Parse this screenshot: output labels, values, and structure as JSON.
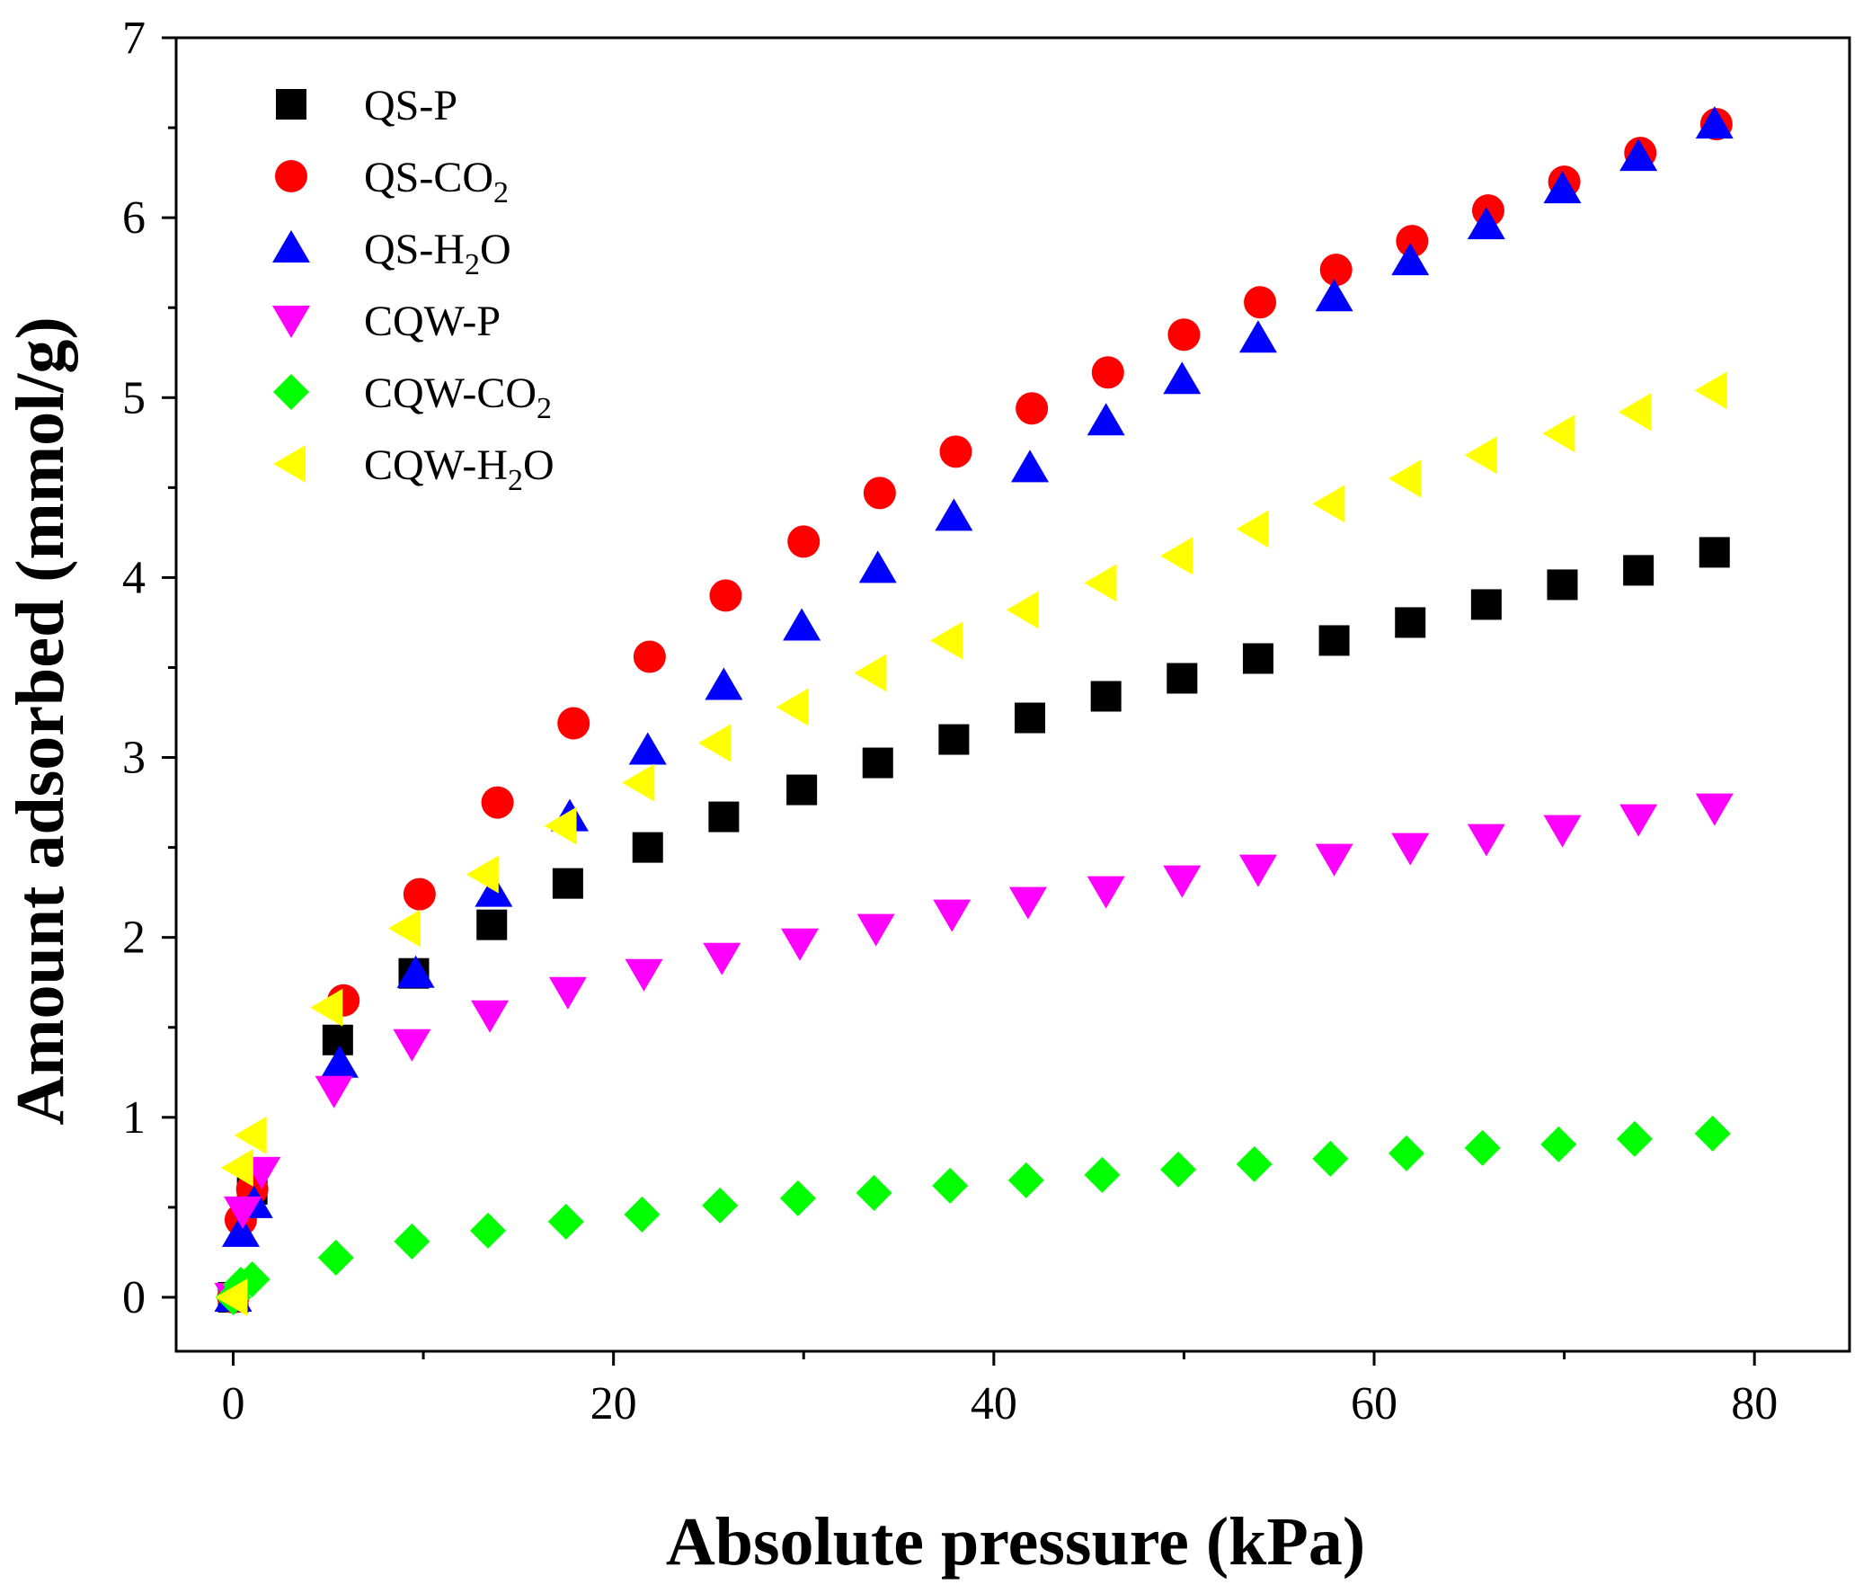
{
  "chart_data": {
    "type": "scatter",
    "title": "",
    "xlabel": "Absolute pressure (kPa)",
    "ylabel": "Amount adsorbed (mmol/g)",
    "xlim": [
      -3,
      85
    ],
    "ylim": [
      -0.3,
      7
    ],
    "xticks": [
      0,
      20,
      40,
      60,
      80
    ],
    "yticks": [
      0,
      1,
      2,
      3,
      4,
      5,
      6,
      7
    ],
    "grid": false,
    "legend_position": "top-left",
    "series": [
      {
        "name": "QS-P",
        "name_main": "QS-P",
        "name_sub": "",
        "name_tail": "",
        "marker": "square",
        "color": "#000000",
        "x": [
          0,
          1,
          5.5,
          9.5,
          13.6,
          17.6,
          21.8,
          25.8,
          29.9,
          33.9,
          37.9,
          41.9,
          45.9,
          49.9,
          53.9,
          57.9,
          61.9,
          65.9,
          69.9,
          73.9,
          77.9
        ],
        "y": [
          0,
          0.6,
          1.43,
          1.8,
          2.07,
          2.3,
          2.5,
          2.67,
          2.82,
          2.97,
          3.1,
          3.22,
          3.34,
          3.44,
          3.55,
          3.65,
          3.75,
          3.85,
          3.96,
          4.04,
          4.14
        ]
      },
      {
        "name": "QS-CO2",
        "name_main": "QS-CO",
        "name_sub": "2",
        "name_tail": "",
        "marker": "circle",
        "color": "#ff0000",
        "x": [
          0,
          0.4,
          1,
          5.8,
          9.8,
          13.9,
          17.9,
          21.9,
          25.9,
          30,
          34,
          38,
          42,
          46,
          50,
          54,
          58,
          62,
          66,
          70,
          74,
          78
        ],
        "y": [
          0,
          0.43,
          0.6,
          1.65,
          2.24,
          2.75,
          3.19,
          3.56,
          3.9,
          4.2,
          4.47,
          4.7,
          4.94,
          5.14,
          5.35,
          5.53,
          5.71,
          5.87,
          6.04,
          6.2,
          6.36,
          6.52
        ]
      },
      {
        "name": "QS-H2O",
        "name_main": "QS-H",
        "name_sub": "2",
        "name_tail": "O",
        "marker": "triangle-up",
        "color": "#0000ff",
        "x": [
          0,
          0.4,
          1.1,
          5.6,
          9.6,
          13.7,
          17.7,
          21.8,
          25.8,
          29.9,
          33.9,
          37.9,
          41.9,
          45.9,
          49.9,
          53.9,
          57.9,
          61.9,
          65.9,
          69.9,
          73.9,
          77.9
        ],
        "y": [
          0,
          0.36,
          0.52,
          1.3,
          1.8,
          2.25,
          2.67,
          3.04,
          3.4,
          3.73,
          4.05,
          4.34,
          4.61,
          4.87,
          5.1,
          5.33,
          5.56,
          5.76,
          5.96,
          6.16,
          6.34,
          6.52
        ]
      },
      {
        "name": "CQW-P",
        "name_main": "CQW-P",
        "name_sub": "",
        "name_tail": "",
        "marker": "triangle-down",
        "color": "#ff00ff",
        "x": [
          0,
          0.5,
          1.5,
          5.3,
          9.4,
          13.5,
          17.6,
          21.6,
          25.7,
          29.8,
          33.8,
          37.8,
          41.8,
          45.9,
          49.9,
          53.9,
          57.9,
          61.9,
          65.9,
          69.9,
          73.9,
          77.9
        ],
        "y": [
          0,
          0.48,
          0.7,
          1.15,
          1.41,
          1.57,
          1.7,
          1.8,
          1.89,
          1.97,
          2.05,
          2.13,
          2.2,
          2.26,
          2.32,
          2.38,
          2.44,
          2.5,
          2.55,
          2.6,
          2.66,
          2.72
        ]
      },
      {
        "name": "CQW-CO2",
        "name_main": "CQW-CO",
        "name_sub": "2",
        "name_tail": "",
        "marker": "diamond",
        "color": "#00ff00",
        "x": [
          0,
          0.4,
          1,
          5.4,
          9.4,
          13.4,
          17.5,
          21.5,
          25.6,
          29.7,
          33.7,
          37.7,
          41.7,
          45.7,
          49.7,
          53.7,
          57.7,
          61.7,
          65.7,
          69.7,
          73.7,
          77.8
        ],
        "y": [
          0,
          0.07,
          0.1,
          0.22,
          0.31,
          0.37,
          0.42,
          0.46,
          0.51,
          0.55,
          0.58,
          0.62,
          0.65,
          0.68,
          0.71,
          0.74,
          0.77,
          0.8,
          0.83,
          0.85,
          0.88,
          0.91
        ]
      },
      {
        "name": "CQW-H2O",
        "name_main": "CQW-H",
        "name_sub": "2",
        "name_tail": "O",
        "marker": "triangle-left",
        "color": "#ffff00",
        "x": [
          0,
          0.3,
          1,
          5,
          9.1,
          13.2,
          17.3,
          21.4,
          25.4,
          29.5,
          33.6,
          37.6,
          41.6,
          45.7,
          49.7,
          53.7,
          57.7,
          61.7,
          65.7,
          69.8,
          73.8,
          77.8
        ],
        "y": [
          0,
          0.72,
          0.9,
          1.61,
          2.05,
          2.35,
          2.62,
          2.86,
          3.08,
          3.28,
          3.47,
          3.65,
          3.82,
          3.97,
          4.12,
          4.27,
          4.41,
          4.55,
          4.68,
          4.8,
          4.92,
          5.04
        ]
      }
    ]
  }
}
